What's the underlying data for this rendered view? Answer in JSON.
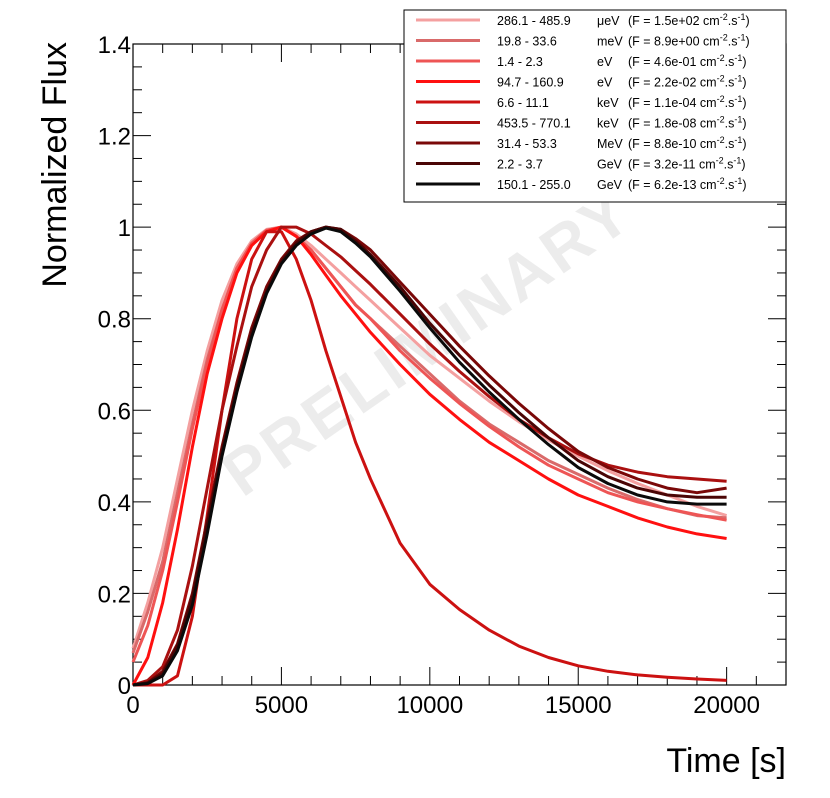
{
  "chart_data": {
    "type": "line",
    "title": "",
    "xlabel": "Time [s]",
    "ylabel": "Normalized Flux",
    "xlim": [
      0,
      22000
    ],
    "ylim": [
      0,
      1.4
    ],
    "x_ticks": [
      0,
      5000,
      10000,
      15000,
      20000
    ],
    "x_tick_labels": [
      "0",
      "5000",
      "10000",
      "15000",
      "20000"
    ],
    "y_ticks": [
      0,
      0.2,
      0.4,
      0.6,
      0.8,
      1,
      1.2,
      1.4
    ],
    "y_tick_labels": [
      "0",
      "0.2",
      "0.4",
      "0.6",
      "0.8",
      "1",
      "1.2",
      "1.4"
    ],
    "grid": false,
    "legend_position": "top-right",
    "watermark": "PRELIMINARY",
    "x": [
      0,
      500,
      1000,
      1500,
      2000,
      2500,
      3000,
      3500,
      4000,
      4500,
      5000,
      5500,
      6000,
      6500,
      7000,
      7500,
      8000,
      9000,
      10000,
      11000,
      12000,
      13000,
      14000,
      15000,
      16000,
      17000,
      18000,
      19000,
      20000
    ],
    "series": [
      {
        "name": "286.1 - 485.9 μeV",
        "range": "286.1 - 485.9",
        "unit": "μeV",
        "flux": "(F = 1.5e+02 cm",
        "color": "#f4a0a0",
        "values": [
          0.08,
          0.18,
          0.3,
          0.45,
          0.6,
          0.73,
          0.84,
          0.92,
          0.97,
          0.995,
          1.0,
          0.985,
          0.96,
          0.93,
          0.9,
          0.87,
          0.84,
          0.78,
          0.72,
          0.67,
          0.62,
          0.575,
          0.535,
          0.5,
          0.468,
          0.44,
          0.415,
          0.39,
          0.37
        ]
      },
      {
        "name": "19.8 - 33.6 meV",
        "range": "19.8 - 33.6",
        "unit": "meV",
        "flux": "(F = 8.9e+00 cm",
        "color": "#d96a6a",
        "values": [
          0.07,
          0.16,
          0.27,
          0.42,
          0.57,
          0.71,
          0.82,
          0.91,
          0.965,
          0.993,
          1.0,
          0.98,
          0.95,
          0.91,
          0.87,
          0.83,
          0.8,
          0.74,
          0.68,
          0.62,
          0.57,
          0.53,
          0.49,
          0.46,
          0.43,
          0.405,
          0.385,
          0.37,
          0.365
        ]
      },
      {
        "name": "1.4 - 2.3 eV",
        "range": "1.4 - 2.3",
        "unit": "eV",
        "flux": "(F = 4.6e-01 cm",
        "color": "#ee5555",
        "values": [
          0.05,
          0.13,
          0.25,
          0.4,
          0.56,
          0.7,
          0.82,
          0.91,
          0.965,
          0.993,
          1.0,
          0.98,
          0.95,
          0.91,
          0.87,
          0.83,
          0.8,
          0.73,
          0.67,
          0.615,
          0.565,
          0.52,
          0.48,
          0.45,
          0.42,
          0.4,
          0.385,
          0.372,
          0.36
        ]
      },
      {
        "name": "94.7 - 160.9 eV",
        "range": "94.7 - 160.9",
        "unit": "eV",
        "flux": "(F = 2.2e-02 cm",
        "color": "#ff1010",
        "values": [
          0.0,
          0.06,
          0.18,
          0.34,
          0.52,
          0.68,
          0.8,
          0.9,
          0.96,
          0.99,
          1.0,
          0.98,
          0.94,
          0.895,
          0.85,
          0.81,
          0.77,
          0.7,
          0.635,
          0.58,
          0.53,
          0.49,
          0.45,
          0.415,
          0.39,
          0.365,
          0.345,
          0.33,
          0.32
        ]
      },
      {
        "name": "6.6 - 11.1 keV",
        "range": "6.6 - 11.1",
        "unit": "keV",
        "flux": "(F = 1.1e-04 cm",
        "color": "#cc1111",
        "values": [
          0.0,
          0.0,
          0.0,
          0.02,
          0.15,
          0.37,
          0.6,
          0.8,
          0.93,
          0.99,
          0.99,
          0.93,
          0.84,
          0.73,
          0.63,
          0.53,
          0.45,
          0.31,
          0.22,
          0.165,
          0.12,
          0.085,
          0.06,
          0.042,
          0.03,
          0.022,
          0.017,
          0.013,
          0.01
        ]
      },
      {
        "name": "453.5 - 770.1 keV",
        "range": "453.5 - 770.1",
        "unit": "keV",
        "flux": "(F = 1.8e-08 cm",
        "color": "#aa1010",
        "values": [
          0.0,
          0.01,
          0.04,
          0.12,
          0.26,
          0.43,
          0.6,
          0.74,
          0.87,
          0.95,
          1.0,
          1.0,
          0.985,
          0.96,
          0.935,
          0.905,
          0.875,
          0.81,
          0.745,
          0.685,
          0.63,
          0.58,
          0.54,
          0.505,
          0.48,
          0.465,
          0.455,
          0.45,
          0.445
        ]
      },
      {
        "name": "31.4 - 53.3 MeV",
        "range": "31.4 - 53.3",
        "unit": "MeV",
        "flux": "(F = 8.8e-10 cm",
        "color": "#7a0808",
        "values": [
          0.0,
          0.005,
          0.03,
          0.09,
          0.2,
          0.36,
          0.52,
          0.66,
          0.78,
          0.87,
          0.93,
          0.97,
          0.99,
          1.0,
          0.995,
          0.975,
          0.95,
          0.88,
          0.81,
          0.74,
          0.675,
          0.615,
          0.56,
          0.51,
          0.475,
          0.45,
          0.43,
          0.42,
          0.43
        ]
      },
      {
        "name": "2.2 - 3.7 GeV",
        "range": "2.2 - 3.7",
        "unit": "GeV",
        "flux": "(F = 3.2e-11 cm",
        "color": "#4a0505",
        "values": [
          0.0,
          0.005,
          0.025,
          0.085,
          0.19,
          0.35,
          0.51,
          0.65,
          0.77,
          0.86,
          0.925,
          0.965,
          0.99,
          1.0,
          0.995,
          0.97,
          0.94,
          0.87,
          0.79,
          0.72,
          0.655,
          0.595,
          0.54,
          0.49,
          0.455,
          0.43,
          0.415,
          0.41,
          0.41
        ]
      },
      {
        "name": "150.1 - 255.0 GeV",
        "range": "150.1 - 255.0",
        "unit": "GeV",
        "flux": "(F = 6.2e-13 cm",
        "color": "#0a0a0a",
        "values": [
          0.0,
          0.003,
          0.02,
          0.075,
          0.175,
          0.33,
          0.5,
          0.64,
          0.76,
          0.855,
          0.92,
          0.96,
          0.985,
          0.998,
          0.99,
          0.965,
          0.935,
          0.86,
          0.78,
          0.705,
          0.64,
          0.58,
          0.525,
          0.475,
          0.44,
          0.415,
          0.4,
          0.395,
          0.395
        ]
      }
    ]
  }
}
